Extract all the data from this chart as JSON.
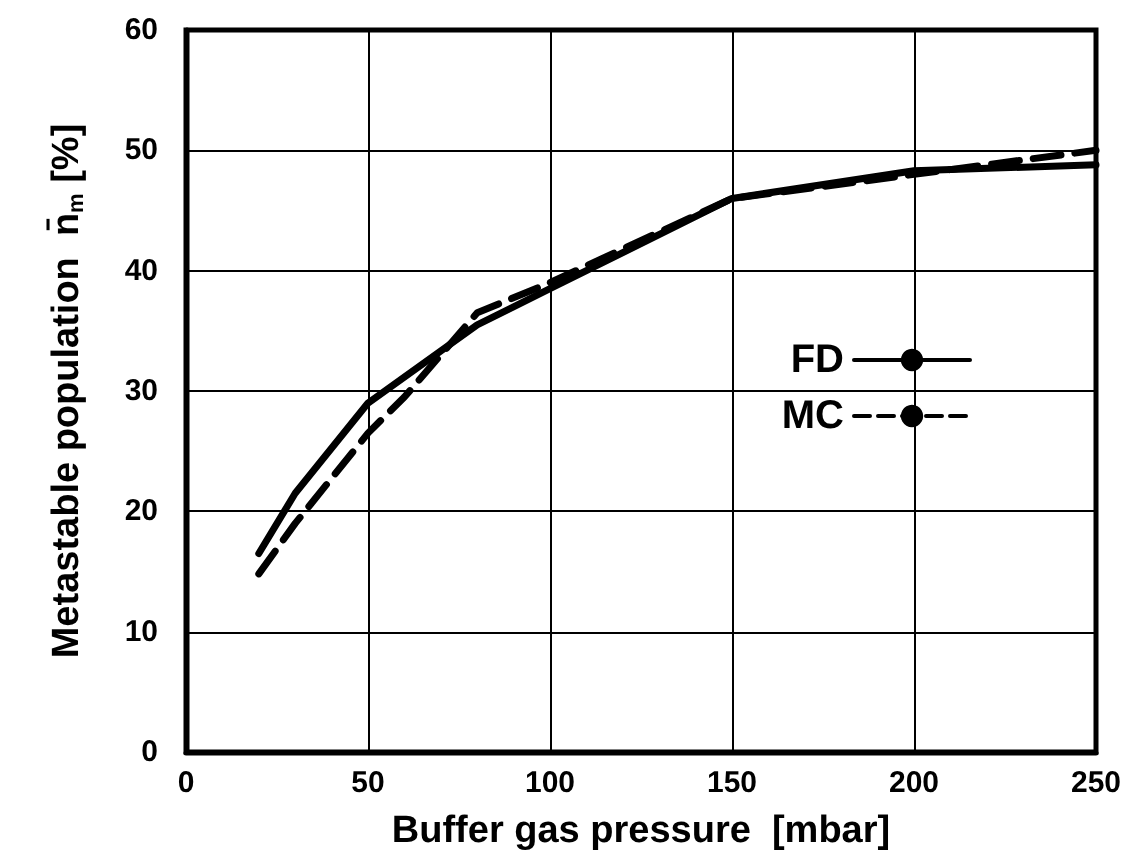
{
  "chart_data": {
    "type": "line",
    "xlabel": "Buffer gas pressure  [mbar]",
    "ylabel": "Metastable population  n̄$_{m}$ [%]",
    "xlim": [
      0,
      250
    ],
    "xticks": [
      0,
      50,
      100,
      150,
      200,
      250
    ],
    "ylim": [
      0,
      60
    ],
    "yticks": [
      0,
      10,
      20,
      30,
      40,
      50,
      60
    ],
    "grid": true,
    "legend": "right",
    "marker": "none",
    "series": [
      {
        "name": "FD",
        "color": "#000000",
        "line_style": "solid",
        "x": [
          20,
          30,
          50,
          80,
          100,
          150,
          200,
          250
        ],
        "values": [
          16.5,
          21.5,
          29,
          35.5,
          38.5,
          46,
          48.3,
          48.8
        ]
      },
      {
        "name": "MC",
        "color": "#000000",
        "line_style": "dashed",
        "x": [
          20,
          30,
          50,
          60,
          80,
          100,
          150,
          200,
          250
        ],
        "values": [
          14.8,
          19,
          26.5,
          29.5,
          36.5,
          39,
          46,
          48,
          50
        ]
      }
    ]
  }
}
